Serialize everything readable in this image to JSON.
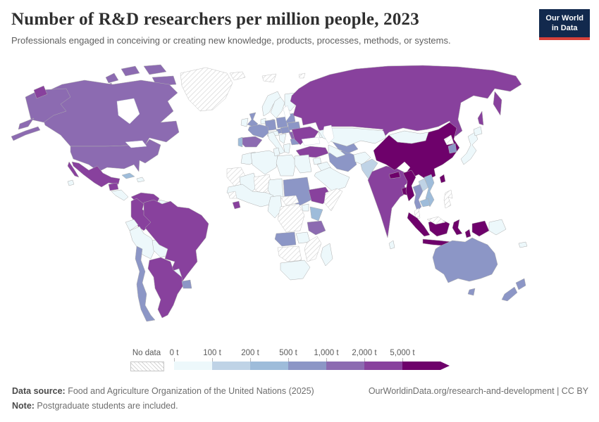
{
  "header": {
    "title": "Number of R&D researchers per million people, 2023",
    "subtitle": "Professionals engaged in conceiving or creating new knowledge, products, processes, methods, or systems."
  },
  "logo": {
    "line1": "Our World",
    "line2": "in Data",
    "bg_color": "#12294d",
    "accent_color": "#d7413a"
  },
  "legend": {
    "no_data_label": "No data",
    "bins": [
      {
        "label": "0 t",
        "key": "b0",
        "color": "#edf8fb"
      },
      {
        "label": "100 t",
        "key": "b100",
        "color": "#bfd3e6"
      },
      {
        "label": "200 t",
        "key": "b200",
        "color": "#9ebcda"
      },
      {
        "label": "500 t",
        "key": "b500",
        "color": "#8c96c6"
      },
      {
        "label": "1,000 t",
        "key": "b1000",
        "color": "#8c6bb1"
      },
      {
        "label": "2,000 t",
        "key": "b2000",
        "color": "#88419d"
      },
      {
        "label": "5,000 t",
        "key": "b5000",
        "color": "#6e016b"
      }
    ]
  },
  "map": {
    "bin_colors": {
      "b0": "#edf8fb",
      "b100": "#bfd3e6",
      "b200": "#9ebcda",
      "b500": "#8c96c6",
      "b1000": "#8c6bb1",
      "b2000": "#88419d",
      "b5000": "#6e016b"
    },
    "countries": {
      "greenland": "no_data",
      "iceland": "no_data",
      "svalbard": "no_data",
      "fjl": "no_data",
      "ws_mauritania": "no_data",
      "niger": "no_data",
      "guinea": "no_data",
      "car": "no_data",
      "drc": "no_data",
      "somalia": "no_data",
      "zimbabwe_mozambique": "no_data",
      "namibia_botswana": "no_data",
      "nkorea": "no_data",
      "malaysia_peninsula": "no_data",
      "malaysia_borneo": "no_data",
      "philippines": "no_data",
      "hawaii": "b0",
      "central_america": "b0",
      "hispaniola": "b0",
      "guyanas": "b0",
      "ecuador": "b0",
      "peru": "b0",
      "bolivia": "b0",
      "paraguay": "b0",
      "ireland": "b0",
      "norway": "b0",
      "sweden": "b0",
      "finland": "b0",
      "denmark": "b0",
      "benelux": "b0",
      "alpine": "b0",
      "italy": "b0",
      "west_balkans": "b0",
      "greece": "b0",
      "kazakhstan": "b0",
      "turkmenistan": "b0",
      "caucasus": "b0",
      "syria": "b0",
      "iraq": "b0",
      "arabia": "b0",
      "afghanistan": "b0",
      "mongolia": "b0",
      "japan": "b0",
      "hokkaido": "b0",
      "sri_lanka": "b0",
      "papua_new_guinea": "b0",
      "new_caledonia": "b0",
      "morocco": "b0",
      "algeria": "b0",
      "tunisia": "b0",
      "libya": "b0",
      "egypt": "b0",
      "mali": "b0",
      "chad": "b0",
      "west_africa": "b0",
      "cameroon_gabon": "b0",
      "uganda": "b0",
      "zambia": "b0",
      "south_africa": "b0",
      "madagascar": "b0",
      "pakistan": "b100",
      "laos": "b100",
      "cuba": "b200",
      "vietnam": "b200",
      "cambodia": "b200",
      "kenya": "b200",
      "portugal": "b200",
      "uk": "b500",
      "france": "b500",
      "germany": "b500",
      "poland": "b500",
      "czechia": "b500",
      "hungary": "b500",
      "baltics": "b500",
      "belarus": "b500",
      "bulgaria": "b500",
      "iran": "b500",
      "uzbekistan": "b500",
      "thailand": "b500",
      "skorea": "b500",
      "australia": "b500",
      "tasmania": "b500",
      "nz_north": "b500",
      "nz_south": "b500",
      "chile": "b500",
      "uruguay": "b500",
      "angola": "b500",
      "sudan": "b500",
      "canada": "b1000",
      "canada_isl_1": "b1000",
      "canada_isl_2": "b1000",
      "canada_isl_3": "b1000",
      "canada_isl_4": "b1000",
      "canada_isl_5": "b1000",
      "alaska": "b1000",
      "alaska_tail": "b1000",
      "aleutians": "b1000",
      "usa": "b1000",
      "spain": "b1000",
      "romania": "b1000",
      "tanzania": "b1000",
      "mexico": "b2000",
      "baja": "b2000",
      "guatemala": "b2000",
      "venezuela": "b2000",
      "colombia": "b2000",
      "brazil": "b2000",
      "argentina": "b2000",
      "russia": "b2000",
      "kamchatka": "b2000",
      "sakhalin": "b2000",
      "chukotka_wrap": "b2000",
      "ukraine": "b2000",
      "turkey": "b2000",
      "india": "b2000",
      "ethiopia": "b2000",
      "liberia": "b2000",
      "china": "b5000",
      "nepal": "b5000",
      "bangladesh": "b5000",
      "myanmar": "b5000",
      "taiwan": "b5000",
      "sumatra": "b5000",
      "kalimantan": "b5000",
      "java": "b5000",
      "sulawesi": "b5000",
      "maluku": "b5000",
      "lesser_sunda": "b5000",
      "west_papua": "b5000"
    }
  },
  "footer": {
    "datasource_label": "Data source:",
    "datasource_text": " Food and Agriculture Organization of the United Nations (2025)",
    "note_label": "Note:",
    "note_text": " Postgraduate students are included.",
    "link_text": "OurWorldinData.org/research-and-development | CC BY"
  }
}
